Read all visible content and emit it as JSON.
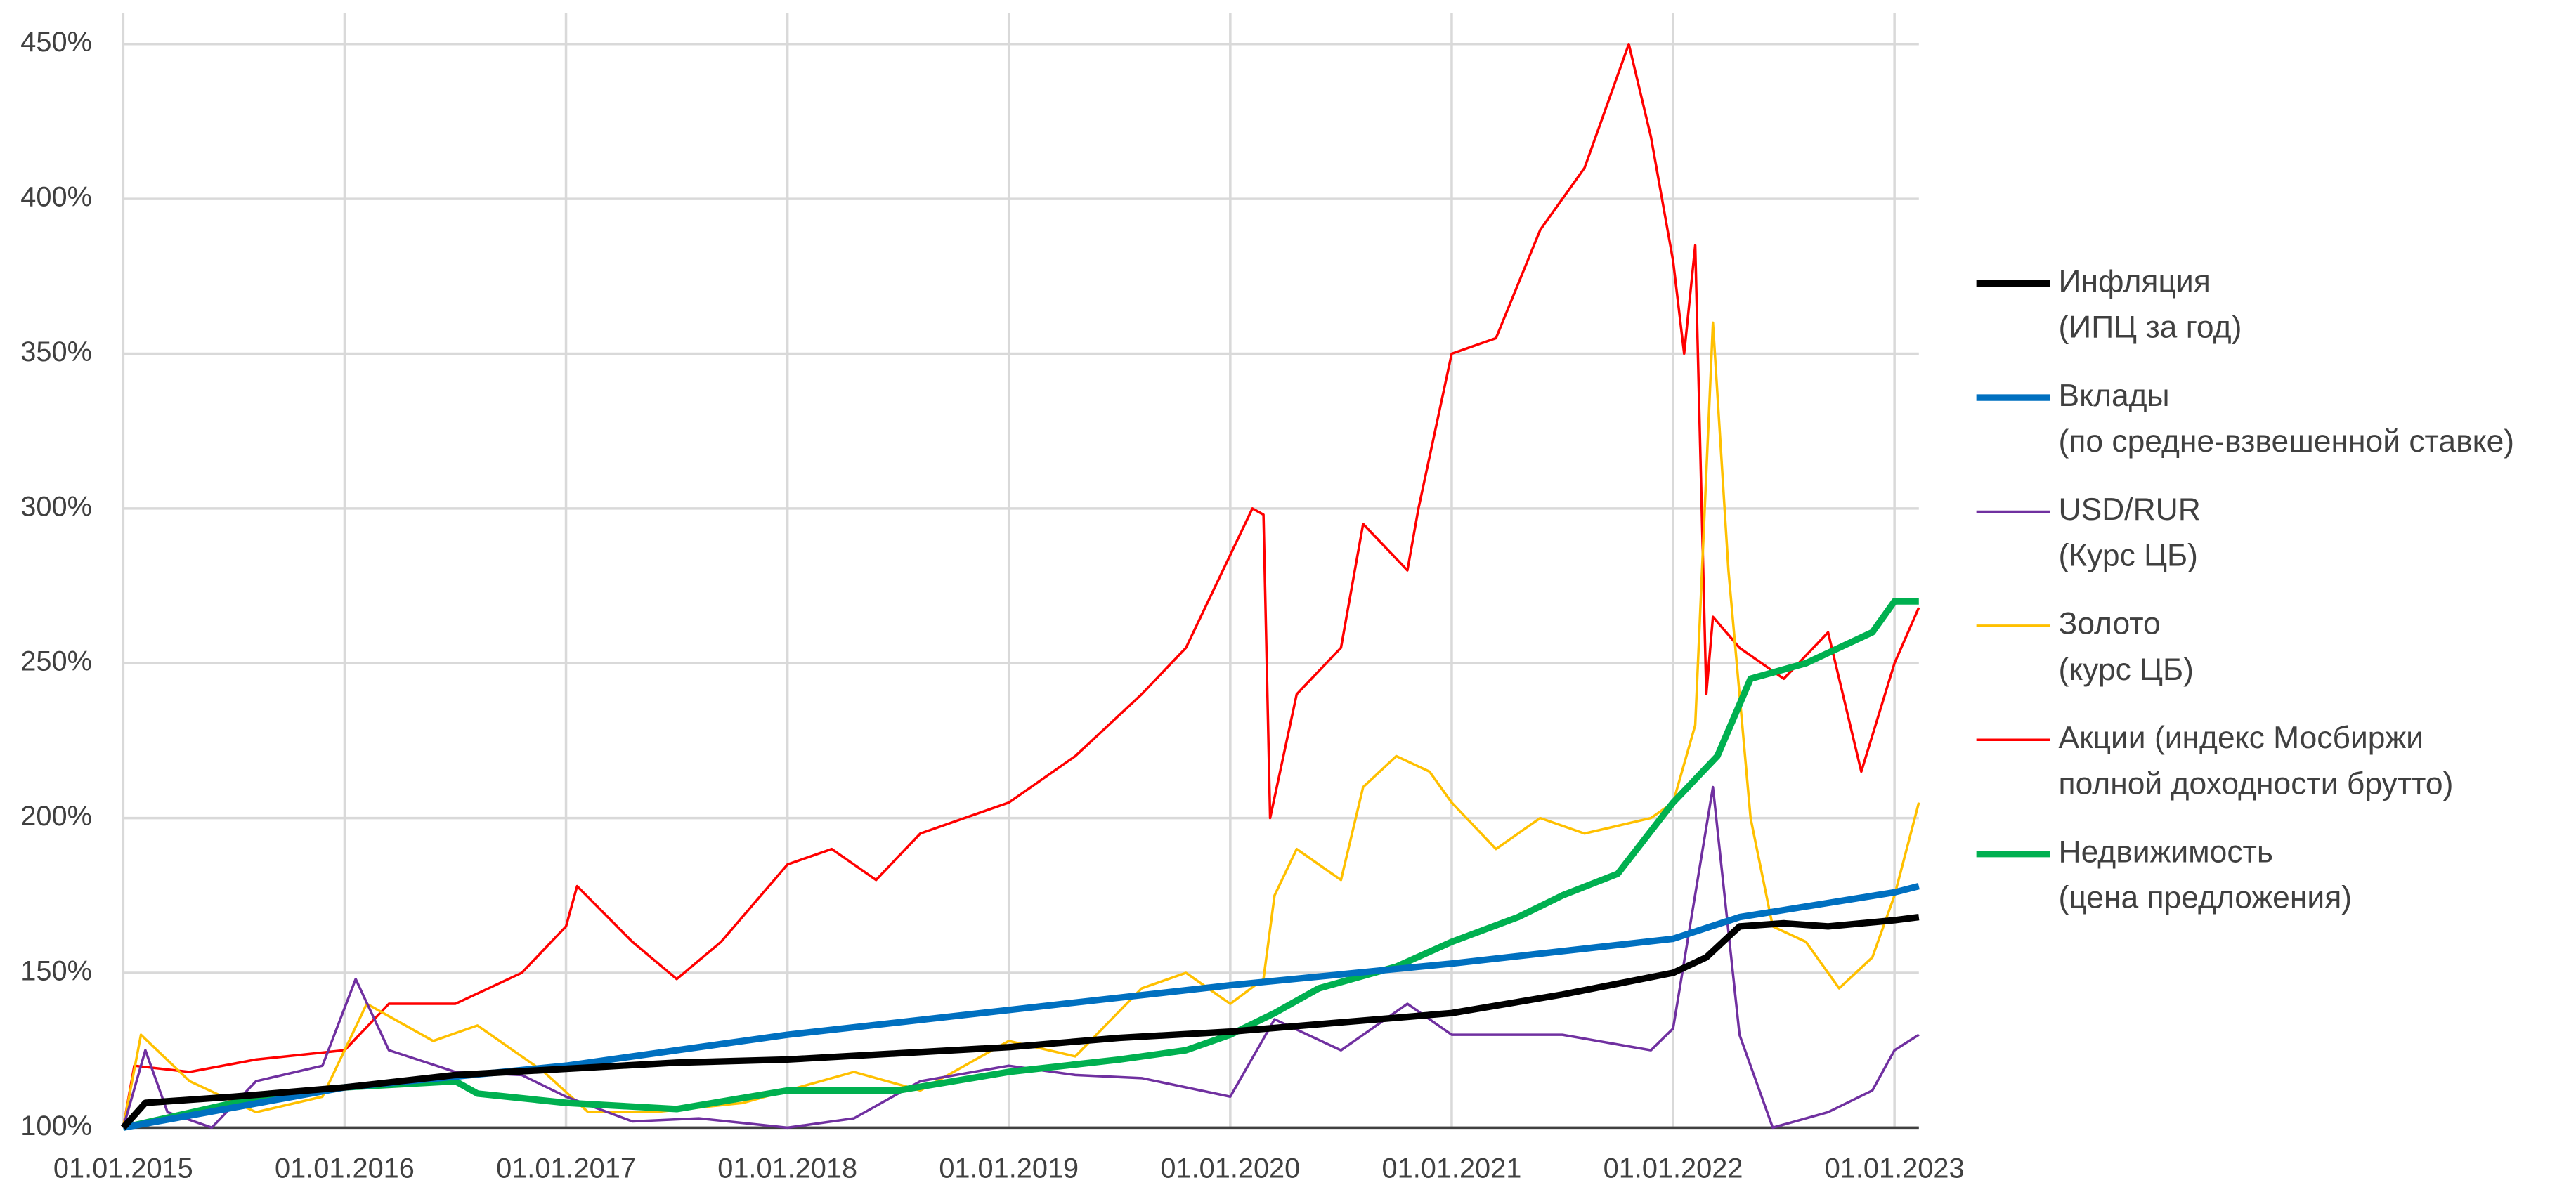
{
  "chart_data": {
    "type": "line",
    "xlim": [
      2015,
      2023.11
    ],
    "xticks": [
      {
        "value": 2015,
        "label": "01.01.2015"
      },
      {
        "value": 2016,
        "label": "01.01.2016"
      },
      {
        "value": 2017,
        "label": "01.01.2017"
      },
      {
        "value": 2018,
        "label": "01.01.2018"
      },
      {
        "value": 2019,
        "label": "01.01.2019"
      },
      {
        "value": 2020,
        "label": "01.01.2020"
      },
      {
        "value": 2021,
        "label": "01.01.2021"
      },
      {
        "value": 2022,
        "label": "01.01.2022"
      },
      {
        "value": 2023,
        "label": "01.01.2023"
      }
    ],
    "ylim": [
      100,
      460
    ],
    "yticks": [
      {
        "value": 100,
        "label": "100%"
      },
      {
        "value": 150,
        "label": "150%"
      },
      {
        "value": 200,
        "label": "200%"
      },
      {
        "value": 250,
        "label": "250%"
      },
      {
        "value": 300,
        "label": "300%"
      },
      {
        "value": 350,
        "label": "350%"
      },
      {
        "value": 400,
        "label": "400%"
      },
      {
        "value": 450,
        "label": "450%"
      }
    ],
    "grid": true,
    "legend": "right",
    "series": [
      {
        "name": [
          "Инфляция",
          "(ИПЦ за год)"
        ],
        "color": "#000000",
        "line_width": 4,
        "x": [
          2015,
          2015.1,
          2015.5,
          2016,
          2016.5,
          2017,
          2017.5,
          2018,
          2018.5,
          2019,
          2019.5,
          2020,
          2020.5,
          2021,
          2021.5,
          2022,
          2022.15,
          2022.3,
          2022.5,
          2022.7,
          2023,
          2023.11
        ],
        "values": [
          100,
          108,
          110,
          113,
          117,
          119,
          121,
          122,
          124,
          126,
          129,
          131,
          134,
          137,
          143,
          150,
          155,
          165,
          166,
          165,
          167,
          168
        ]
      },
      {
        "name": [
          "Вклады",
          "(по средне-взвешенной ставке)"
        ],
        "color": "#0070c0",
        "line_width": 4,
        "x": [
          2015,
          2016,
          2017,
          2018,
          2019,
          2020,
          2021,
          2022,
          2022.3,
          2023,
          2023.11
        ],
        "values": [
          100,
          113,
          120,
          130,
          138,
          146,
          153,
          161,
          168,
          176,
          178
        ]
      },
      {
        "name": [
          "USD/RUR",
          "(Курс ЦБ)"
        ],
        "color": "#7030a0",
        "line_width": 1.5,
        "x": [
          2015,
          2015.1,
          2015.2,
          2015.4,
          2015.6,
          2015.9,
          2016.05,
          2016.2,
          2016.5,
          2016.8,
          2017,
          2017.3,
          2017.6,
          2018,
          2018.3,
          2018.6,
          2019,
          2019.3,
          2019.6,
          2020,
          2020.2,
          2020.5,
          2020.8,
          2021,
          2021.5,
          2021.9,
          2022,
          2022.18,
          2022.3,
          2022.45,
          2022.7,
          2022.9,
          2023,
          2023.11
        ],
        "values": [
          100,
          125,
          105,
          100,
          115,
          120,
          148,
          125,
          118,
          117,
          110,
          102,
          103,
          100,
          103,
          115,
          120,
          117,
          116,
          110,
          135,
          125,
          140,
          130,
          130,
          125,
          132,
          210,
          130,
          100,
          105,
          112,
          125,
          130
        ]
      },
      {
        "name": [
          "Золото",
          "(курс ЦБ)"
        ],
        "color": "#ffc000",
        "line_width": 1.5,
        "x": [
          2015,
          2015.08,
          2015.3,
          2015.6,
          2015.9,
          2016.1,
          2016.4,
          2016.6,
          2016.9,
          2017.1,
          2017.4,
          2017.8,
          2018,
          2018.3,
          2018.6,
          2019,
          2019.3,
          2019.6,
          2019.8,
          2020,
          2020.15,
          2020.2,
          2020.3,
          2020.5,
          2020.6,
          2020.75,
          2020.9,
          2021,
          2021.2,
          2021.4,
          2021.6,
          2021.9,
          2022,
          2022.1,
          2022.18,
          2022.25,
          2022.35,
          2022.45,
          2022.6,
          2022.75,
          2022.9,
          2023,
          2023.11
        ],
        "values": [
          100,
          130,
          115,
          105,
          110,
          140,
          128,
          133,
          118,
          105,
          105,
          108,
          112,
          118,
          112,
          128,
          123,
          145,
          150,
          140,
          148,
          175,
          190,
          180,
          210,
          220,
          215,
          205,
          190,
          200,
          195,
          200,
          205,
          230,
          360,
          280,
          200,
          165,
          160,
          145,
          155,
          175,
          205
        ]
      },
      {
        "name": [
          "Акции (индекс Мосбиржи",
          "полной доходности брутто)"
        ],
        "color": "#ff0000",
        "line_width": 1.5,
        "x": [
          2015,
          2015.05,
          2015.3,
          2015.6,
          2016,
          2016.2,
          2016.5,
          2016.8,
          2017,
          2017.05,
          2017.3,
          2017.5,
          2017.7,
          2018,
          2018.2,
          2018.4,
          2018.6,
          2019,
          2019.3,
          2019.6,
          2019.8,
          2020,
          2020.1,
          2020.15,
          2020.18,
          2020.3,
          2020.5,
          2020.6,
          2020.8,
          2020.85,
          2021,
          2021.2,
          2021.4,
          2021.6,
          2021.8,
          2021.9,
          2022,
          2022.05,
          2022.1,
          2022.15,
          2022.18,
          2022.3,
          2022.5,
          2022.7,
          2022.85,
          2023,
          2023.11
        ],
        "values": [
          100,
          120,
          118,
          122,
          125,
          140,
          140,
          150,
          165,
          178,
          160,
          148,
          160,
          185,
          190,
          180,
          195,
          205,
          220,
          240,
          255,
          285,
          300,
          298,
          200,
          240,
          255,
          295,
          280,
          300,
          350,
          355,
          390,
          410,
          450,
          420,
          380,
          350,
          385,
          240,
          265,
          255,
          245,
          260,
          215,
          250,
          268
        ]
      },
      {
        "name": [
          "Недвижимость",
          "(цена предложения)"
        ],
        "color": "#00b050",
        "line_width": 4,
        "x": [
          2015,
          2015.5,
          2016,
          2016.5,
          2016.6,
          2017,
          2017.5,
          2018,
          2018.5,
          2019,
          2019.5,
          2019.8,
          2020,
          2020.2,
          2020.4,
          2020.75,
          2021,
          2021.3,
          2021.5,
          2021.75,
          2022,
          2022.2,
          2022.35,
          2022.6,
          2022.9,
          2023,
          2023.11
        ],
        "values": [
          100,
          108,
          113,
          115,
          111,
          108,
          106,
          112,
          112,
          118,
          122,
          125,
          130,
          137,
          145,
          152,
          160,
          168,
          175,
          182,
          205,
          220,
          245,
          250,
          260,
          270,
          270
        ]
      }
    ]
  }
}
